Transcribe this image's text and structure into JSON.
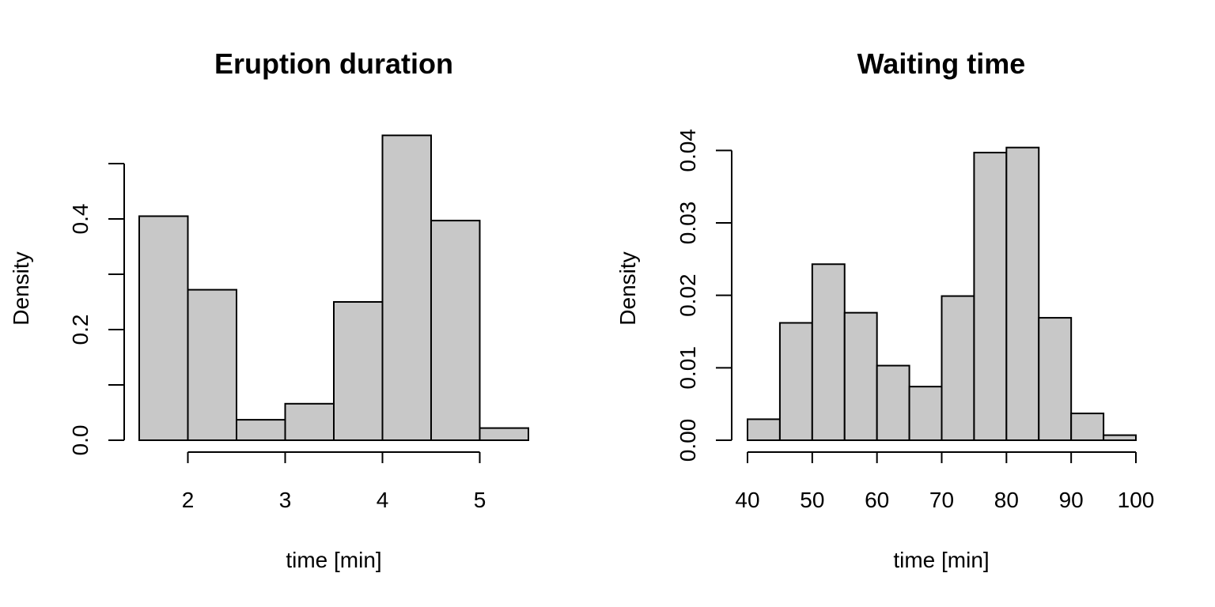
{
  "chart_data": [
    {
      "type": "bar",
      "title": "Eruption duration",
      "xlabel": "time [min]",
      "ylabel": "Density",
      "bar_color": "#c8c8c8",
      "edge_color": "#000000",
      "bin_edges": [
        1.5,
        2.0,
        2.5,
        3.0,
        3.5,
        4.0,
        4.5,
        5.0,
        5.5
      ],
      "values": [
        0.405,
        0.272,
        0.037,
        0.066,
        0.25,
        0.551,
        0.397,
        0.022
      ],
      "xlim": [
        1.5,
        5.5
      ],
      "ylim": [
        0,
        0.55
      ],
      "x_ticks": [
        2,
        3,
        4,
        5
      ],
      "x_tick_labels": [
        "2",
        "3",
        "4",
        "5"
      ],
      "y_ticks": [
        0.0,
        0.1,
        0.2,
        0.3,
        0.4,
        0.5
      ],
      "y_tick_labels": [
        "0.0",
        "",
        "0.2",
        "",
        "0.4",
        ""
      ],
      "grid": false
    },
    {
      "type": "bar",
      "title": "Waiting time",
      "xlabel": "time [min]",
      "ylabel": "Density",
      "bar_color": "#c8c8c8",
      "edge_color": "#000000",
      "bin_edges": [
        40,
        45,
        50,
        55,
        60,
        65,
        70,
        75,
        80,
        85,
        90,
        95,
        100
      ],
      "values": [
        0.0029,
        0.0162,
        0.0243,
        0.0176,
        0.0103,
        0.0074,
        0.0199,
        0.0397,
        0.0404,
        0.0169,
        0.0037,
        0.0007
      ],
      "xlim": [
        40,
        100
      ],
      "ylim": [
        0,
        0.042
      ],
      "x_ticks": [
        40,
        50,
        60,
        70,
        80,
        90,
        100
      ],
      "x_tick_labels": [
        "40",
        "50",
        "60",
        "70",
        "80",
        "90",
        "100"
      ],
      "y_ticks": [
        0.0,
        0.01,
        0.02,
        0.03,
        0.04
      ],
      "y_tick_labels": [
        "0.00",
        "0.01",
        "0.02",
        "0.03",
        "0.04"
      ],
      "grid": false
    }
  ]
}
